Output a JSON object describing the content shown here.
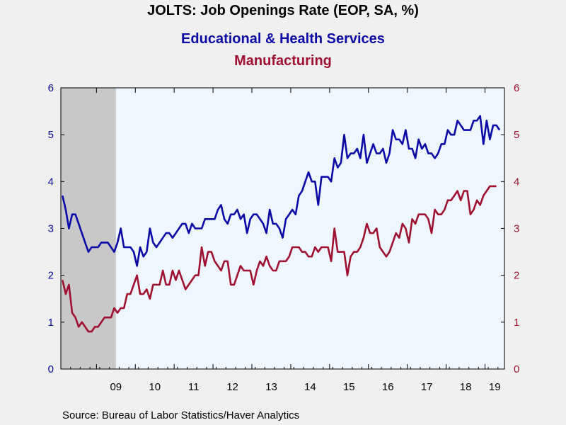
{
  "header": {
    "title": "JOLTS: Job Openings Rate (EOP, SA, %)",
    "subtitle1": "Educational & Health Services",
    "subtitle2": "Manufacturing"
  },
  "source": "Source:  Bureau of Labor Statistics/Haver Analytics",
  "colors": {
    "edu": "#0a0aa8",
    "mfg": "#a01030",
    "recession": "#c8c8c8",
    "plot_bg": "#eef6ff"
  },
  "chart_data": {
    "type": "line",
    "x_start": "2008-02",
    "frequency": "monthly",
    "x_tick_labels": [
      "09",
      "10",
      "11",
      "12",
      "13",
      "14",
      "15",
      "16",
      "17",
      "18",
      "19"
    ],
    "ylim_left": [
      0,
      6
    ],
    "ylim_right": [
      0,
      6
    ],
    "y_ticks": [
      0,
      1,
      2,
      3,
      4,
      5,
      6
    ],
    "recession": {
      "start": "2008-02",
      "end": "2009-06"
    },
    "series": [
      {
        "name": "Educational & Health Services",
        "axis": "left",
        "color": "#0a0aa8",
        "values": [
          3.7,
          3.4,
          3.0,
          3.3,
          3.3,
          3.1,
          2.9,
          2.7,
          2.5,
          2.6,
          2.6,
          2.6,
          2.7,
          2.7,
          2.7,
          2.6,
          2.5,
          2.7,
          3.0,
          2.6,
          2.6,
          2.6,
          2.5,
          2.2,
          2.6,
          2.4,
          2.5,
          3.0,
          2.7,
          2.6,
          2.7,
          2.8,
          2.9,
          2.9,
          2.8,
          2.9,
          3.0,
          3.1,
          3.1,
          2.9,
          3.1,
          3.0,
          3.0,
          3.0,
          3.2,
          3.2,
          3.2,
          3.2,
          3.4,
          3.5,
          3.2,
          3.1,
          3.3,
          3.3,
          3.4,
          3.2,
          3.3,
          2.9,
          3.2,
          3.3,
          3.3,
          3.2,
          3.1,
          2.9,
          3.4,
          3.1,
          3.1,
          3.0,
          2.8,
          3.2,
          3.3,
          3.4,
          3.3,
          3.7,
          3.8,
          4.0,
          4.2,
          4.0,
          4.0,
          3.5,
          4.1,
          4.1,
          4.1,
          4.0,
          4.5,
          4.3,
          4.4,
          5.0,
          4.5,
          4.6,
          4.6,
          4.7,
          4.5,
          5.0,
          4.4,
          4.6,
          4.8,
          4.6,
          4.6,
          4.7,
          4.4,
          4.6,
          5.1,
          4.9,
          4.9,
          4.8,
          5.1,
          4.7,
          4.7,
          4.5,
          4.9,
          4.7,
          4.8,
          4.6,
          4.6,
          4.5,
          4.6,
          4.8,
          4.8,
          5.1,
          5.0,
          5.0,
          5.3,
          5.2,
          5.1,
          5.1,
          5.1,
          5.3,
          5.3,
          5.4,
          4.8,
          5.3,
          4.9,
          5.2,
          5.2,
          5.1
        ]
      },
      {
        "name": "Manufacturing",
        "axis": "right",
        "color": "#a01030",
        "values": [
          1.9,
          1.6,
          1.8,
          1.2,
          1.1,
          0.9,
          1.0,
          0.9,
          0.8,
          0.8,
          0.9,
          0.9,
          1.0,
          1.1,
          1.1,
          1.1,
          1.3,
          1.2,
          1.3,
          1.3,
          1.6,
          1.6,
          1.8,
          2.0,
          1.6,
          1.6,
          1.7,
          1.5,
          1.8,
          1.8,
          1.8,
          2.1,
          1.8,
          1.8,
          2.1,
          1.9,
          2.1,
          1.9,
          1.7,
          1.8,
          1.9,
          2.0,
          2.0,
          2.6,
          2.2,
          2.5,
          2.5,
          2.3,
          2.2,
          2.1,
          2.3,
          2.3,
          1.8,
          1.8,
          2.0,
          2.2,
          2.1,
          2.1,
          2.1,
          1.8,
          2.1,
          2.3,
          2.2,
          2.4,
          2.2,
          2.1,
          2.1,
          2.3,
          2.3,
          2.3,
          2.4,
          2.6,
          2.6,
          2.6,
          2.5,
          2.5,
          2.4,
          2.4,
          2.6,
          2.5,
          2.6,
          2.6,
          2.6,
          2.3,
          3.0,
          2.5,
          2.5,
          2.5,
          2.0,
          2.4,
          2.5,
          2.5,
          2.6,
          2.8,
          3.1,
          2.9,
          2.9,
          3.0,
          2.6,
          2.5,
          2.4,
          2.5,
          2.7,
          2.9,
          2.8,
          3.1,
          3.0,
          2.7,
          3.2,
          3.1,
          3.3,
          3.3,
          3.3,
          3.2,
          2.9,
          3.4,
          3.3,
          3.3,
          3.4,
          3.6,
          3.6,
          3.7,
          3.8,
          3.6,
          3.8,
          3.8,
          3.3,
          3.4,
          3.6,
          3.5,
          3.7,
          3.8,
          3.9,
          3.9,
          3.9
        ]
      }
    ]
  }
}
